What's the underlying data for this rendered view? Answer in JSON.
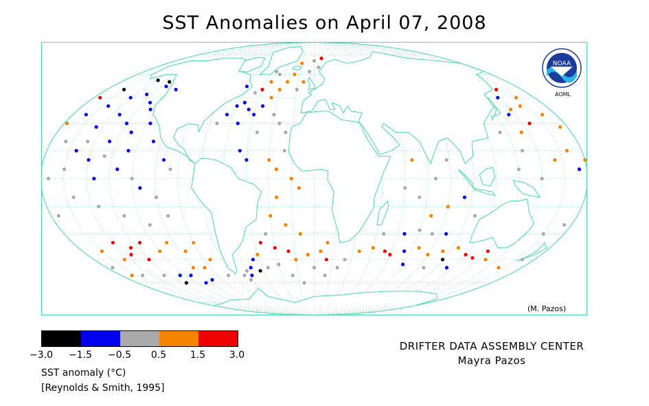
{
  "title": "SST Anomalies on April 07, 2008",
  "credit": "(M. Pazos)",
  "logo": {
    "text": "NOAA",
    "sub": "AOML"
  },
  "legend": {
    "bins": [
      {
        "min": -3.0,
        "max": -1.5,
        "color": "#000000"
      },
      {
        "min": -1.5,
        "max": -0.5,
        "color": "#0000ee"
      },
      {
        "min": -0.5,
        "max": 0.5,
        "color": "#aaaaaa"
      },
      {
        "min": 0.5,
        "max": 1.5,
        "color": "#f58300"
      },
      {
        "min": 1.5,
        "max": 3.0,
        "color": "#ee0000"
      }
    ],
    "ticks": [
      "−3.0",
      "−1.5",
      "−0.5",
      "0.5",
      "1.5",
      "3.0"
    ],
    "label": "SST anomaly (°C)",
    "reference": "[Reynolds & Smith, 1995]"
  },
  "center": {
    "line1": "DRIFTER DATA ASSEMBLY CENTER",
    "line2": "Mayra Pazos"
  },
  "map": {
    "projection": "Mollweide",
    "graticule_step_deg": 15,
    "colors": {
      "land_outline": "#44d9a8",
      "graticule": "#44d9a8",
      "ocean": "#ffffff"
    },
    "drifters": [
      {
        "lon": -150,
        "lat": 45,
        "a": -1.0
      },
      {
        "lon": -140,
        "lat": 47,
        "a": -0.8
      },
      {
        "lon": -130,
        "lat": 42,
        "a": -1.2
      },
      {
        "lon": -160,
        "lat": 40,
        "a": -0.9
      },
      {
        "lon": -145,
        "lat": 35,
        "a": -1.1
      },
      {
        "lon": -135,
        "lat": 30,
        "a": -0.7
      },
      {
        "lon": -125,
        "lat": 38,
        "a": -1.3
      },
      {
        "lon": -155,
        "lat": 28,
        "a": -0.6
      },
      {
        "lon": -170,
        "lat": 35,
        "a": -0.8
      },
      {
        "lon": -128,
        "lat": 25,
        "a": -0.9
      },
      {
        "lon": -118,
        "lat": 30,
        "a": -1.0
      },
      {
        "lon": -140,
        "lat": 20,
        "a": -0.7
      },
      {
        "lon": -120,
        "lat": 50,
        "a": -1.1
      },
      {
        "lon": -132,
        "lat": 52,
        "a": -0.9
      },
      {
        "lon": -110,
        "lat": 20,
        "a": -0.6
      },
      {
        "lon": -100,
        "lat": 10,
        "a": -0.8
      },
      {
        "lon": -150,
        "lat": 10,
        "a": -0.7
      },
      {
        "lon": -130,
        "lat": 5,
        "a": -0.9
      },
      {
        "lon": -115,
        "lat": -5,
        "a": -1.0
      },
      {
        "lon": -145,
        "lat": 0,
        "a": -0.8
      },
      {
        "lon": -160,
        "lat": 15,
        "a": -0.6
      },
      {
        "lon": -125,
        "lat": 15,
        "a": -1.2
      },
      {
        "lon": -135,
        "lat": 55,
        "a": -2.0
      },
      {
        "lon": -148,
        "lat": 56,
        "a": -1.8
      },
      {
        "lon": -165,
        "lat": 50,
        "a": -1.7
      },
      {
        "lon": 160,
        "lat": 40,
        "a": 0.8
      },
      {
        "lon": 170,
        "lat": 35,
        "a": 1.0
      },
      {
        "lon": 150,
        "lat": 38,
        "a": 1.2
      },
      {
        "lon": 165,
        "lat": 45,
        "a": 0.7
      },
      {
        "lon": 155,
        "lat": 30,
        "a": 1.8
      },
      {
        "lon": 175,
        "lat": 28,
        "a": 0.6
      },
      {
        "lon": 145,
        "lat": 25,
        "a": 0.9
      },
      {
        "lon": 158,
        "lat": 50,
        "a": 2.0
      },
      {
        "lon": -175,
        "lat": 45,
        "a": 1.6
      },
      {
        "lon": -178,
        "lat": 30,
        "a": 0.8
      },
      {
        "lon": 170,
        "lat": 15,
        "a": 0.7
      },
      {
        "lon": 160,
        "lat": 10,
        "a": 0.9
      },
      {
        "lon": -170,
        "lat": 20,
        "a": 0.1
      },
      {
        "lon": -165,
        "lat": 5,
        "a": 0.0
      },
      {
        "lon": -175,
        "lat": 0,
        "a": 0.2
      },
      {
        "lon": -155,
        "lat": 20,
        "a": -0.1
      },
      {
        "lon": -140,
        "lat": 12,
        "a": 0.3
      },
      {
        "lon": -120,
        "lat": 0,
        "a": -0.2
      },
      {
        "lon": -105,
        "lat": -10,
        "a": 0.1
      },
      {
        "lon": -95,
        "lat": 5,
        "a": -0.3
      },
      {
        "lon": -100,
        "lat": -20,
        "a": 0.0
      },
      {
        "lon": -115,
        "lat": -25,
        "a": 0.2
      },
      {
        "lon": -130,
        "lat": -20,
        "a": -0.1
      },
      {
        "lon": -145,
        "lat": -15,
        "a": 0.3
      },
      {
        "lon": -160,
        "lat": -10,
        "a": 0.1
      },
      {
        "lon": -175,
        "lat": -20,
        "a": -0.2
      },
      {
        "lon": 175,
        "lat": -25,
        "a": 0.0
      },
      {
        "lon": 165,
        "lat": -30,
        "a": 0.2
      },
      {
        "lon": -150,
        "lat": -35,
        "a": 1.8
      },
      {
        "lon": -140,
        "lat": -38,
        "a": 2.0
      },
      {
        "lon": -130,
        "lat": -35,
        "a": 1.7
      },
      {
        "lon": -145,
        "lat": -42,
        "a": 2.2
      },
      {
        "lon": -135,
        "lat": -45,
        "a": 1.9
      },
      {
        "lon": -155,
        "lat": -45,
        "a": 0.8
      },
      {
        "lon": -165,
        "lat": -40,
        "a": 1.0
      },
      {
        "lon": -120,
        "lat": -40,
        "a": 1.2
      },
      {
        "lon": -110,
        "lat": -35,
        "a": 0.9
      },
      {
        "lon": -100,
        "lat": -40,
        "a": 0.7
      },
      {
        "lon": -90,
        "lat": -35,
        "a": 1.1
      },
      {
        "lon": -85,
        "lat": -45,
        "a": 0.8
      },
      {
        "lon": -95,
        "lat": -50,
        "a": 1.3
      },
      {
        "lon": -105,
        "lat": -50,
        "a": 0.6
      },
      {
        "lon": -115,
        "lat": -55,
        "a": -1.0
      },
      {
        "lon": -125,
        "lat": -55,
        "a": -0.8
      },
      {
        "lon": -100,
        "lat": -58,
        "a": -1.1
      },
      {
        "lon": -130,
        "lat": -60,
        "a": -2.0
      },
      {
        "lon": -110,
        "lat": -60,
        "a": -0.9
      },
      {
        "lon": -80,
        "lat": -55,
        "a": 0.1
      },
      {
        "lon": -140,
        "lat": -55,
        "a": 0.0
      },
      {
        "lon": -160,
        "lat": -55,
        "a": -0.2
      },
      {
        "lon": -175,
        "lat": -50,
        "a": 0.3
      },
      {
        "lon": 170,
        "lat": -45,
        "a": 0.2
      },
      {
        "lon": 160,
        "lat": -50,
        "a": 1.0
      },
      {
        "lon": -60,
        "lat": 40,
        "a": -1.0
      },
      {
        "lon": -55,
        "lat": 42,
        "a": -0.8
      },
      {
        "lon": -50,
        "lat": 38,
        "a": -1.2
      },
      {
        "lon": -45,
        "lat": 35,
        "a": -0.9
      },
      {
        "lon": -65,
        "lat": 35,
        "a": -1.1
      },
      {
        "lon": -40,
        "lat": 40,
        "a": -0.7
      },
      {
        "lon": -55,
        "lat": 30,
        "a": -0.6
      },
      {
        "lon": -70,
        "lat": 30,
        "a": 0.2
      },
      {
        "lon": -35,
        "lat": 45,
        "a": 0.8
      },
      {
        "lon": -30,
        "lat": 50,
        "a": 1.0
      },
      {
        "lon": -25,
        "lat": 55,
        "a": 0.9
      },
      {
        "lon": -20,
        "lat": 60,
        "a": 1.2
      },
      {
        "lon": -40,
        "lat": 55,
        "a": 0.7
      },
      {
        "lon": -45,
        "lat": 50,
        "a": 1.9
      },
      {
        "lon": -50,
        "lat": 48,
        "a": 0.2
      },
      {
        "lon": -35,
        "lat": 60,
        "a": -0.1
      },
      {
        "lon": -15,
        "lat": 50,
        "a": 0.0
      },
      {
        "lon": -10,
        "lat": 55,
        "a": 0.8
      },
      {
        "lon": -30,
        "lat": 35,
        "a": -0.2
      },
      {
        "lon": -25,
        "lat": 30,
        "a": 0.3
      },
      {
        "lon": -20,
        "lat": 25,
        "a": 0.1
      },
      {
        "lon": -40,
        "lat": 25,
        "a": -0.3
      },
      {
        "lon": -50,
        "lat": 15,
        "a": -1.0
      },
      {
        "lon": -45,
        "lat": 10,
        "a": -0.9
      },
      {
        "lon": -30,
        "lat": 10,
        "a": 0.7
      },
      {
        "lon": -25,
        "lat": 5,
        "a": 0.9
      },
      {
        "lon": -20,
        "lat": 15,
        "a": 0.2
      },
      {
        "lon": -15,
        "lat": 0,
        "a": 0.8
      },
      {
        "lon": -10,
        "lat": -5,
        "a": 1.0
      },
      {
        "lon": -25,
        "lat": -10,
        "a": 0.6
      },
      {
        "lon": -30,
        "lat": -20,
        "a": 0.9
      },
      {
        "lon": -20,
        "lat": -25,
        "a": 1.1
      },
      {
        "lon": -10,
        "lat": -30,
        "a": 0.7
      },
      {
        "lon": -35,
        "lat": -30,
        "a": 0.2
      },
      {
        "lon": -40,
        "lat": -35,
        "a": 1.8
      },
      {
        "lon": -30,
        "lat": -38,
        "a": 2.0
      },
      {
        "lon": -20,
        "lat": -40,
        "a": 1.7
      },
      {
        "lon": -45,
        "lat": -42,
        "a": 0.8
      },
      {
        "lon": -50,
        "lat": -45,
        "a": -1.0
      },
      {
        "lon": -55,
        "lat": -50,
        "a": -0.8
      },
      {
        "lon": -60,
        "lat": -52,
        "a": 0.1
      },
      {
        "lon": -58,
        "lat": -55,
        "a": -1.2
      },
      {
        "lon": -62,
        "lat": -58,
        "a": -0.1
      },
      {
        "lon": -65,
        "lat": -55,
        "a": 0.0
      },
      {
        "lon": -48,
        "lat": -52,
        "a": -2.0
      },
      {
        "lon": -40,
        "lat": -50,
        "a": 0.3
      },
      {
        "lon": -30,
        "lat": -48,
        "a": 0.0
      },
      {
        "lon": -15,
        "lat": -45,
        "a": 0.8
      },
      {
        "lon": -5,
        "lat": -42,
        "a": 1.0
      },
      {
        "lon": 5,
        "lat": -40,
        "a": 1.2
      },
      {
        "lon": 10,
        "lat": -35,
        "a": 0.9
      },
      {
        "lon": 0,
        "lat": -50,
        "a": 0.1
      },
      {
        "lon": 10,
        "lat": -55,
        "a": -0.2
      },
      {
        "lon": 20,
        "lat": -50,
        "a": 0.3
      },
      {
        "lon": 25,
        "lat": -45,
        "a": 0.0
      },
      {
        "lon": -20,
        "lat": -55,
        "a": -0.3
      },
      {
        "lon": -10,
        "lat": -60,
        "a": 0.2
      },
      {
        "lon": 35,
        "lat": -40,
        "a": 0.8
      },
      {
        "lon": 45,
        "lat": -38,
        "a": 1.0
      },
      {
        "lon": 55,
        "lat": -40,
        "a": 1.8
      },
      {
        "lon": 60,
        "lat": -42,
        "a": 2.1
      },
      {
        "lon": 70,
        "lat": -40,
        "a": -1.0
      },
      {
        "lon": 80,
        "lat": -38,
        "a": 0.7
      },
      {
        "lon": 90,
        "lat": -42,
        "a": 0.9
      },
      {
        "lon": 100,
        "lat": -40,
        "a": 1.1
      },
      {
        "lon": 110,
        "lat": -38,
        "a": 0.8
      },
      {
        "lon": 120,
        "lat": -42,
        "a": 1.9
      },
      {
        "lon": 128,
        "lat": -44,
        "a": 2.1
      },
      {
        "lon": 135,
        "lat": -40,
        "a": 1.7
      },
      {
        "lon": 140,
        "lat": -45,
        "a": 0.6
      },
      {
        "lon": 95,
        "lat": -30,
        "a": -1.1
      },
      {
        "lon": 85,
        "lat": -30,
        "a": 0.0
      },
      {
        "lon": 75,
        "lat": -28,
        "a": 0.2
      },
      {
        "lon": 65,
        "lat": -30,
        "a": -0.9
      },
      {
        "lon": 50,
        "lat": -30,
        "a": 0.1
      },
      {
        "lon": 80,
        "lat": -20,
        "a": 0.8
      },
      {
        "lon": 90,
        "lat": -15,
        "a": 0.9
      },
      {
        "lon": 70,
        "lat": -10,
        "a": 0.1
      },
      {
        "lon": 60,
        "lat": -5,
        "a": -0.2
      },
      {
        "lon": 80,
        "lat": 0,
        "a": 0.3
      },
      {
        "lon": 65,
        "lat": 10,
        "a": 0.7
      },
      {
        "lon": 88,
        "lat": 10,
        "a": 0.0
      },
      {
        "lon": 100,
        "lat": -10,
        "a": -1.0
      },
      {
        "lon": 110,
        "lat": -20,
        "a": 0.2
      },
      {
        "lon": 105,
        "lat": -45,
        "a": -2.0
      },
      {
        "lon": 75,
        "lat": -48,
        "a": -0.8
      },
      {
        "lon": 95,
        "lat": -50,
        "a": 0.1
      },
      {
        "lon": 115,
        "lat": -50,
        "a": -0.9
      },
      {
        "lon": 130,
        "lat": 25,
        "a": 0.1
      },
      {
        "lon": 140,
        "lat": 15,
        "a": -0.2
      },
      {
        "lon": 135,
        "lat": 5,
        "a": 0.0
      },
      {
        "lon": 150,
        "lat": 0,
        "a": 0.3
      },
      {
        "lon": 145,
        "lat": 35,
        "a": -1.0
      },
      {
        "lon": 150,
        "lat": 45,
        "a": -0.8
      },
      {
        "lon": 175,
        "lat": 5,
        "a": -1.2
      },
      {
        "lon": 180,
        "lat": 10,
        "a": 0.8
      },
      {
        "lon": -60,
        "lat": 52,
        "a": -1.0
      },
      {
        "lon": -40,
        "lat": 62,
        "a": 0.1
      },
      {
        "lon": -5,
        "lat": 62,
        "a": 0.2
      },
      {
        "lon": 5,
        "lat": 65,
        "a": 0.0
      },
      {
        "lon": 0,
        "lat": 70,
        "a": -0.1
      },
      {
        "lon": 10,
        "lat": 72,
        "a": 1.8
      },
      {
        "lon": -15,
        "lat": 68,
        "a": 0.9
      },
      {
        "lon": -170,
        "lat": -55,
        "a": 0.7
      },
      {
        "lon": 10,
        "lat": -45,
        "a": 1.9
      }
    ]
  }
}
